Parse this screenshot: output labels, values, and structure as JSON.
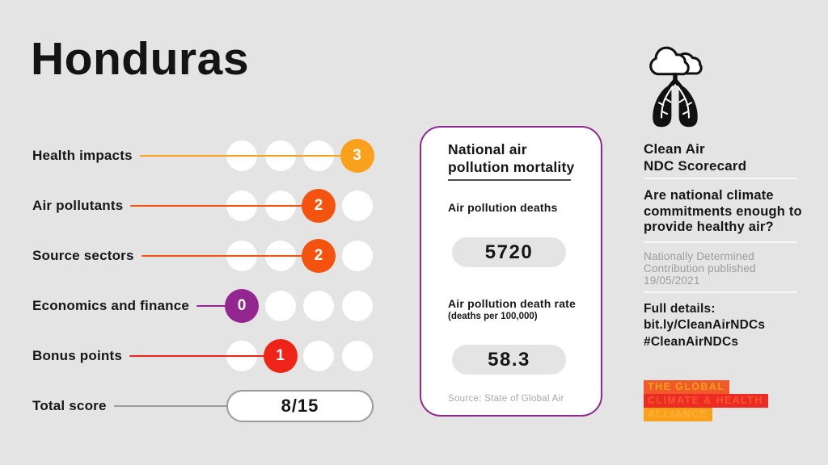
{
  "page": {
    "title": "Honduras",
    "background_color": "#E4E4E4"
  },
  "chart_data": {
    "type": "table",
    "title": "Honduras — Clean Air NDC Scorecard",
    "categories": [
      "Health impacts",
      "Air pollutants",
      "Source sectors",
      "Economics and finance",
      "Bonus points"
    ],
    "values": [
      3,
      2,
      2,
      0,
      1
    ],
    "max_per_category": 3,
    "dots_per_row": 4,
    "total_score": "8/15",
    "legend_position": "none",
    "notes": "Each row shows 4 dots representing scores 0-3; the achieved score dot is filled with the category color."
  },
  "scorecard": {
    "rows": [
      {
        "label": "Health impacts",
        "score": 3,
        "max_score": 3,
        "color": "#F9A11B"
      },
      {
        "label": "Air pollutants",
        "score": 2,
        "max_score": 3,
        "color": "#F4530F"
      },
      {
        "label": "Source sectors",
        "score": 2,
        "max_score": 3,
        "color": "#F4530F"
      },
      {
        "label": "Economics and finance",
        "score": 0,
        "max_score": 3,
        "color": "#93278F"
      },
      {
        "label": "Bonus points",
        "score": 1,
        "max_score": 3,
        "color": "#EF2418"
      }
    ],
    "total": {
      "label": "Total score",
      "value": "8/15",
      "line_color": "#9B9B9B"
    }
  },
  "mortality_card": {
    "border_color": "#92278F",
    "title": "National air pollution mortality",
    "deaths_label": "Air pollution deaths",
    "deaths_value": "5720",
    "rate_label": "Air pollution death rate",
    "rate_sublabel": "(deaths per 100,000)",
    "rate_value": "58.3",
    "source": "Source: State of Global Air"
  },
  "sidebar": {
    "icon": "lungs-cloud-icon",
    "heading_line1": "Clean Air",
    "heading_line2": "NDC Scorecard",
    "question": "Are national climate commitments enough to provide healthy air?",
    "ndc_note": "Nationally Determined Contribution published 19/05/2021",
    "details_label": "Full details:",
    "details_link": "bit.ly/CleanAirNDCs",
    "hashtag": "#CleanAirNDCs",
    "logo_lines": [
      {
        "text": "THE GLOBAL",
        "bg": "#F1592A",
        "fg": "#F9A11B"
      },
      {
        "text": "CLIMATE & HEALTH",
        "bg": "#EE2A24",
        "fg": "#F1592A"
      },
      {
        "text": "ALLIANCE",
        "bg": "#F9A11B",
        "fg": "#FBB03B"
      }
    ]
  }
}
